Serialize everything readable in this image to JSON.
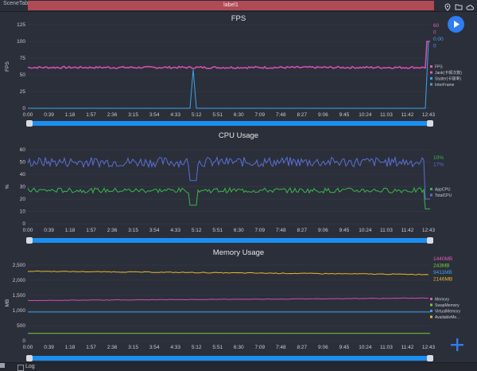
{
  "app": {
    "tab": "SceneTab",
    "label": "label1",
    "log": "Log"
  },
  "x_ticks": [
    "0:00",
    "0:39",
    "1:18",
    "1:57",
    "2:36",
    "3:15",
    "3:54",
    "4:33",
    "5:12",
    "5:51",
    "6:30",
    "7:09",
    "7:48",
    "8:27",
    "9:06",
    "9:45",
    "10:24",
    "11:03",
    "11:42",
    "12:43"
  ],
  "fps": {
    "title": "FPS",
    "y_label": "FPS",
    "y_ticks": [
      "0",
      "25",
      "50",
      "75",
      "100",
      "125"
    ],
    "values": [
      "60",
      "0",
      "0.00",
      "0"
    ],
    "value_colors": [
      "#e05ab8",
      "#e05ab8",
      "#3ba4e8",
      "#3ba4e8"
    ],
    "legend": [
      "FPS",
      "Jank(卡顿次数)",
      "Stutter(卡顿率)",
      "InterFrame"
    ],
    "legend_colors": [
      "#e05ab8",
      "#e05ab8",
      "#3ba4e8",
      "#3ba4e8"
    ]
  },
  "cpu": {
    "title": "CPU Usage",
    "y_label": "%",
    "y_ticks": [
      "0",
      "10",
      "20",
      "30",
      "40",
      "50",
      "60"
    ],
    "values": [
      "10%",
      "17%"
    ],
    "value_colors": [
      "#39b84a",
      "#5a6fd6"
    ],
    "legend": [
      "AppCPU",
      "TotalCPU"
    ],
    "legend_colors": [
      "#39b84a",
      "#5a6fd6"
    ]
  },
  "memory": {
    "title": "Memory Usage",
    "y_label": "MB",
    "y_ticks": [
      "0",
      "500",
      "1,000",
      "1,500",
      "2,000",
      "2,500"
    ],
    "values": [
      "1440MB",
      "243MB",
      "9411MB",
      "2146MB"
    ],
    "value_colors": [
      "#e05ab8",
      "#7ac93a",
      "#3ba4e8",
      "#e8b72a"
    ],
    "legend": [
      "Memory",
      "SwapMemory",
      "VirtualMemory",
      "AvailableMe..."
    ],
    "legend_colors": [
      "#e05ab8",
      "#7ac93a",
      "#3ba4e8",
      "#e8b72a"
    ]
  }
}
